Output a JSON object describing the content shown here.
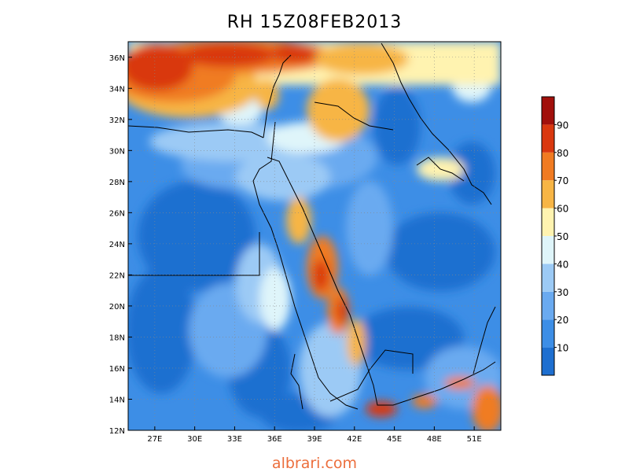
{
  "title": "RH    15Z08FEB2013",
  "footer": {
    "text": "albrari.com",
    "color": "#ec6e3c"
  },
  "map": {
    "lon_range": [
      25,
      53
    ],
    "lat_range": [
      12,
      37
    ],
    "lon_ticks": [
      "27E",
      "30E",
      "33E",
      "36E",
      "39E",
      "42E",
      "45E",
      "48E",
      "51E"
    ],
    "lat_ticks": [
      "12N",
      "14N",
      "16N",
      "18N",
      "20N",
      "22N",
      "24N",
      "26N",
      "28N",
      "30N",
      "32N",
      "34N",
      "36N"
    ],
    "grid": "dotted"
  },
  "colorbar": {
    "labels": [
      "10",
      "20",
      "30",
      "40",
      "50",
      "60",
      "70",
      "80",
      "90"
    ],
    "colors": [
      "#1e6fd0",
      "#3d8ee6",
      "#6aaaf0",
      "#9ccaf5",
      "#dff5fa",
      "#fff3b0",
      "#f7b545",
      "#f07b22",
      "#d9380f",
      "#a1100c"
    ]
  }
}
